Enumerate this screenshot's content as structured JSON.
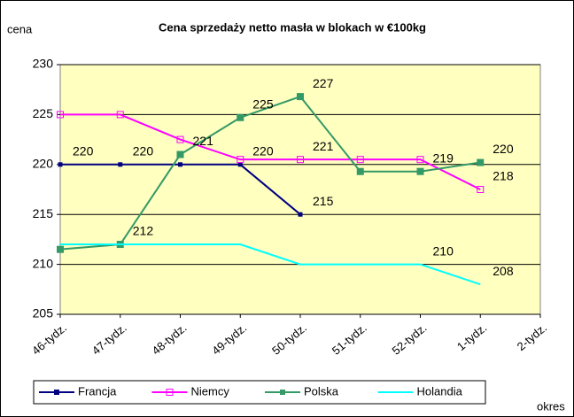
{
  "chart_data": {
    "type": "line",
    "title": "Cena sprzedaży netto masła w blokach w €100kg",
    "y_label": "cena",
    "x_label": "okres",
    "categories": [
      "46-tydz.",
      "47-tydz.",
      "48-tydz.",
      "49-tydz.",
      "50-tydz.",
      "51-tydz.",
      "52-tydz.",
      "1-tydz.",
      "2-tydz."
    ],
    "ylim": [
      205,
      230
    ],
    "yticks": [
      205,
      210,
      215,
      220,
      225,
      230
    ],
    "grid": true,
    "legend": "bottom",
    "series": [
      {
        "name": "Francja",
        "color": "#000080",
        "marker": "diamond",
        "values": [
          220,
          220,
          220,
          220,
          215,
          null,
          null,
          null,
          null
        ],
        "value_labels": [
          "220",
          "220",
          null,
          "220",
          "215",
          null,
          null,
          null,
          null
        ]
      },
      {
        "name": "Niemcy",
        "color": "#ff00ff",
        "marker": "square-open",
        "values": [
          225,
          225,
          222.5,
          220.5,
          220.5,
          220.5,
          220.5,
          217.5,
          null
        ],
        "value_labels": [
          null,
          null,
          null,
          null,
          "221",
          null,
          null,
          "218",
          null
        ]
      },
      {
        "name": "Polska",
        "color": "#339966",
        "marker": "square",
        "values": [
          211.5,
          212,
          221,
          224.7,
          226.8,
          219.3,
          219.3,
          220.2,
          null
        ],
        "value_labels": [
          null,
          "212",
          "221",
          "225",
          "227",
          null,
          "219",
          "220",
          null
        ]
      },
      {
        "name": "Holandia",
        "color": "#00ffff",
        "marker": "none",
        "values": [
          212,
          212,
          212,
          212,
          210,
          210,
          210,
          208,
          null
        ],
        "value_labels": [
          null,
          null,
          null,
          null,
          null,
          null,
          "210",
          "208",
          null
        ]
      }
    ]
  }
}
